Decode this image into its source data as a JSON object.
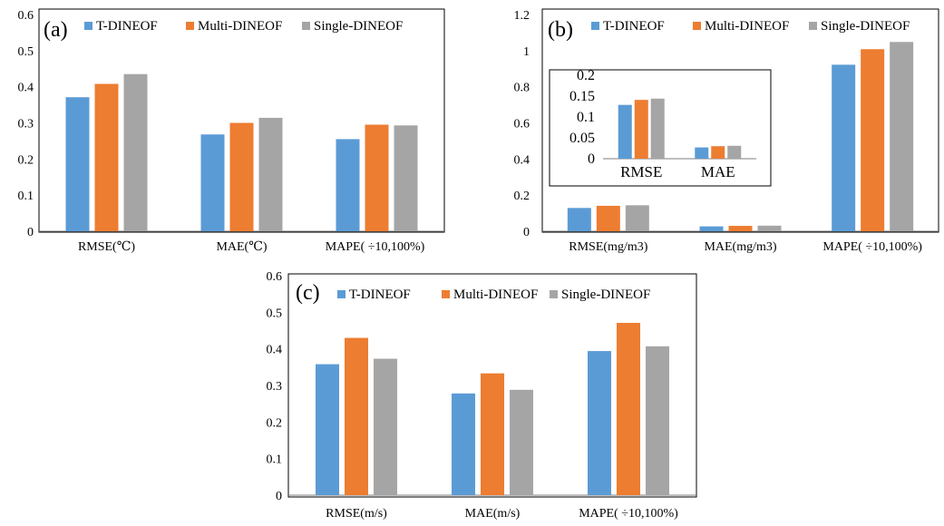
{
  "colors": {
    "series": [
      "#5b9bd5",
      "#ed7d31",
      "#a5a5a5"
    ],
    "axis": "#7f7f7f",
    "frame": "#000000"
  },
  "chart_data": [
    {
      "type": "bar",
      "panel_label": "(a)",
      "categories": [
        "RMSE(℃)",
        "MAE(℃)",
        "MAPE( ÷10,100%)"
      ],
      "series": [
        {
          "name": "T-DINEOF",
          "values": [
            0.371,
            0.268,
            0.255
          ]
        },
        {
          "name": "Multi-DINEOF",
          "values": [
            0.408,
            0.3,
            0.295
          ]
        },
        {
          "name": "Single-DINEOF",
          "values": [
            0.435,
            0.314,
            0.293
          ]
        }
      ],
      "ylim": [
        0,
        0.6
      ],
      "yticks": [
        0,
        0.1,
        0.2,
        0.3,
        0.4,
        0.5,
        0.6
      ],
      "ytick_labels": [
        "0",
        "0.1",
        "0.2",
        "0.3",
        "0.4",
        "0.5",
        "0.6"
      ],
      "grid": false,
      "legend": "top"
    },
    {
      "type": "bar",
      "panel_label": "(b)",
      "categories": [
        "RMSE(mg/m3)",
        "MAE(mg/m3)",
        "MAPE( ÷10,100%)"
      ],
      "series": [
        {
          "name": "T-DINEOF",
          "values": [
            0.129,
            0.027,
            0.922
          ]
        },
        {
          "name": "Multi-DINEOF",
          "values": [
            0.141,
            0.03,
            1.008
          ]
        },
        {
          "name": "Single-DINEOF",
          "values": [
            0.144,
            0.031,
            1.048
          ]
        }
      ],
      "ylim": [
        0,
        1.2
      ],
      "yticks": [
        0,
        0.2,
        0.4,
        0.6,
        0.8,
        1.0,
        1.2
      ],
      "ytick_labels": [
        "0",
        "0.2",
        "0.4",
        "0.6",
        "0.8",
        "1",
        "1.2"
      ],
      "grid": false,
      "legend": "top",
      "inset": {
        "categories": [
          "RMSE",
          "MAE"
        ],
        "ylim": [
          0,
          0.2
        ],
        "yticks": [
          0,
          0.05,
          0.1,
          0.15,
          0.2
        ],
        "ytick_labels": [
          "0",
          "0.05",
          "0.1",
          "0.15",
          "0.2"
        ]
      }
    },
    {
      "type": "bar",
      "panel_label": "(c)",
      "categories": [
        "RMSE(m/s)",
        "MAE(m/s)",
        "MAPE( ÷10,100%)"
      ],
      "series": [
        {
          "name": "T-DINEOF",
          "values": [
            0.358,
            0.278,
            0.394
          ]
        },
        {
          "name": "Multi-DINEOF",
          "values": [
            0.43,
            0.333,
            0.471
          ]
        },
        {
          "name": "Single-DINEOF",
          "values": [
            0.373,
            0.288,
            0.407
          ]
        }
      ],
      "ylim": [
        0,
        0.6
      ],
      "yticks": [
        0,
        0.1,
        0.2,
        0.3,
        0.4,
        0.5,
        0.6
      ],
      "ytick_labels": [
        "0",
        "0.1",
        "0.2",
        "0.3",
        "0.4",
        "0.5",
        "0.6"
      ],
      "grid": false,
      "legend": "top"
    }
  ]
}
